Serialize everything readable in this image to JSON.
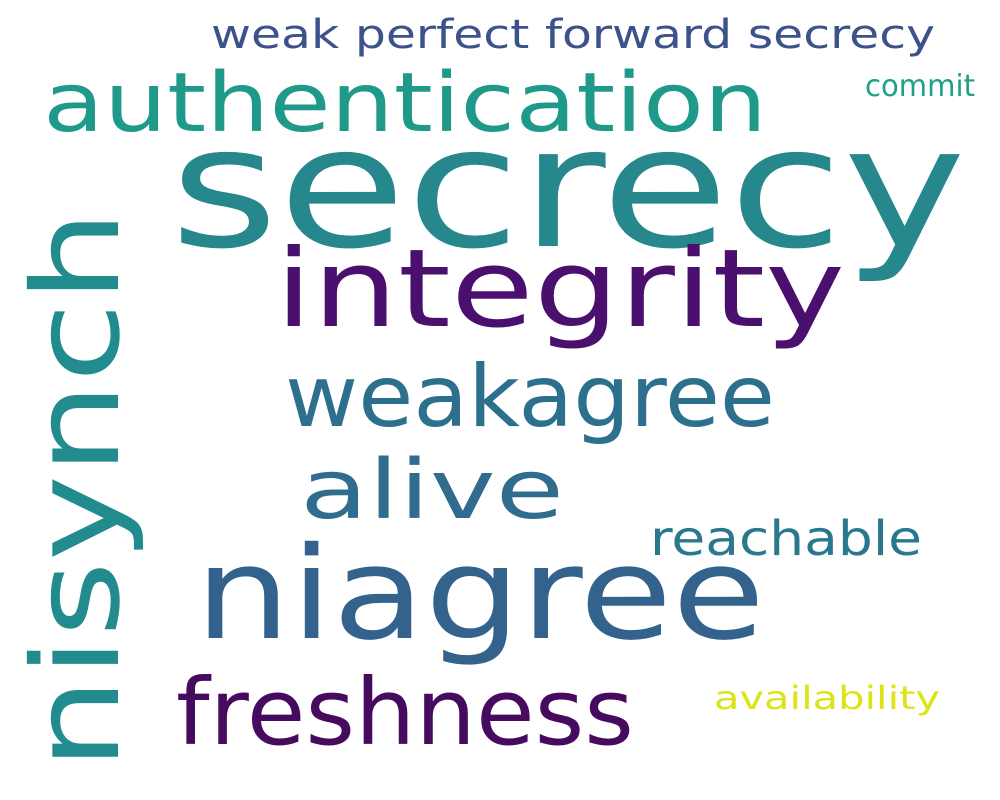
{
  "words": [
    {
      "text": "secrecy",
      "color": "#26878d"
    },
    {
      "text": "nisynch",
      "color": "#228b8d"
    },
    {
      "text": "niagree",
      "color": "#33638d"
    },
    {
      "text": "integrity",
      "color": "#4b0f6e"
    },
    {
      "text": "authentication",
      "color": "#1f9a8a"
    },
    {
      "text": "weakagree",
      "color": "#2d708e"
    },
    {
      "text": "alive",
      "color": "#2f6c8e"
    },
    {
      "text": "freshness",
      "color": "#460b5e"
    },
    {
      "text": "weak perfect forward secrecy",
      "color": "#3b528b"
    },
    {
      "text": "reachable",
      "color": "#2a788e"
    },
    {
      "text": "availability",
      "color": "#dde318"
    },
    {
      "text": "commit",
      "color": "#1fa088"
    }
  ]
}
